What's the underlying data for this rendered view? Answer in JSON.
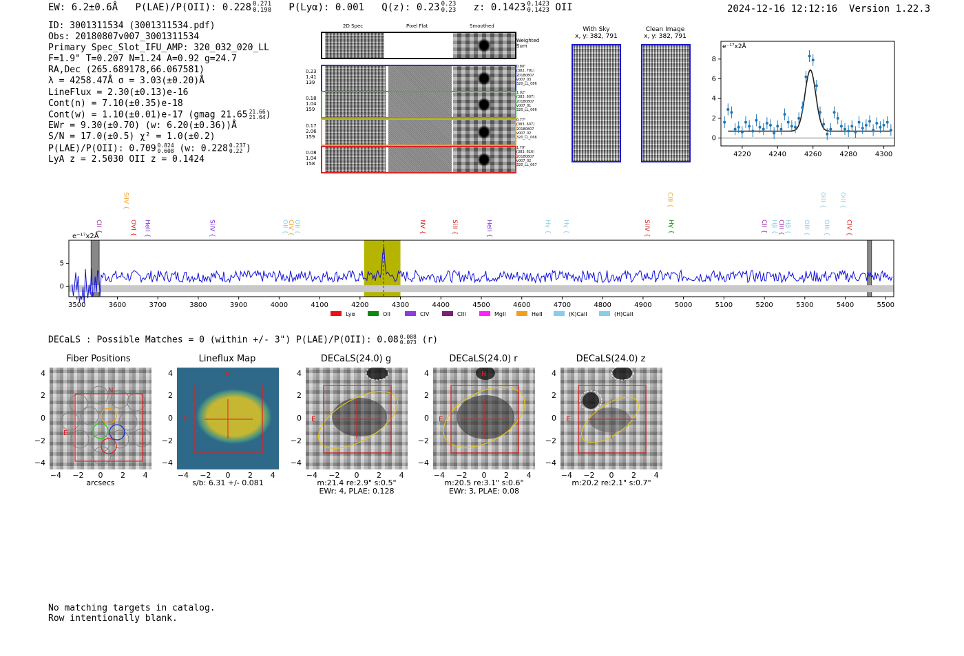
{
  "header": {
    "ew": "EW: 6.2±0.6Å",
    "plae_label": "P(LAE)/P(OII): 0.228",
    "plae_sup": "0.271",
    "plae_sub": "0.198",
    "plya": "P(Lyα): 0.001",
    "q_label": "Q(z): 0.23",
    "q_sup": "0.23",
    "q_sub": "0.23",
    "z_label": "z: 0.1423",
    "z_sup": "0.1423",
    "z_sub": "0.1423",
    "z_line": "OII",
    "timestamp": "2024-12-16 12:12:16",
    "version": "Version 1.22.3"
  },
  "info": {
    "id": "ID: 3001311534 (3001311534.pdf)",
    "obs": "Obs: 20180807v007_3001311534",
    "primary": "Primary Spec_Slot_IFU_AMP: 320_032_020_LL",
    "fparams": "F=1.9\"  T=0.207  N=1.24  A=0.92  g=24.7",
    "radec": "RA,Dec (265.689178,66.067581)",
    "lambda": "λ = 4258.47Å  σ = 3.03(±0.20)Å",
    "lineflux": "LineFlux = 2.30(±0.13)e-16",
    "contn": "Cont(n) = 7.10(±0.35)e-18",
    "contw_pre": "Cont(w) = 1.10(±0.01)e-17 (gmag 21.65",
    "contw_sup": "21.66",
    "contw_sub": "21.64",
    "contw_post": ")",
    "ewr": "EWr = 9.30(±0.70) (w: 6.20(±0.36))Å",
    "sn": "S/N = 17.0(±0.5)  χ² = 1.0(±0.2)",
    "plae_pre": "P(LAE)/P(OII): 0.709",
    "plae_sup": "0.824",
    "plae_sub": "0.608",
    "plae_mid": " (w: 0.228",
    "plae_sup2": "0.237",
    "plae_sub2": "0.22",
    "plae_post": ")",
    "lyaz": "LyA z = 2.5030   OII z = 0.1424"
  },
  "cutouts": {
    "col_labels": [
      "2D Spec",
      "Pixel Flat",
      "Smoothed"
    ],
    "weighted_sum": [
      "Weighted",
      "Sum"
    ],
    "rows": [
      {
        "color": "#2233cc",
        "left": [
          "0.23",
          "1.41",
          "139"
        ],
        "right": [
          "0.80\"",
          "(382, 791)",
          "20180807",
          "v007_03",
          "320_LL_086"
        ]
      },
      {
        "color": "#22cc22",
        "left": [
          "0.18",
          "1.04",
          "159"
        ],
        "right": [
          "1.02\"",
          "(383, 607)",
          "20180807",
          "v007_01",
          "320_LL_066"
        ]
      },
      {
        "color": "#f0a020",
        "left": [
          "0.17",
          "2.06",
          "159"
        ],
        "right": [
          "0.77\"",
          "(383, 607)",
          "20180807",
          "v007_02",
          "320_LL_066"
        ]
      },
      {
        "color": "#dd2222",
        "left": [
          "0.08",
          "1.04",
          "158"
        ],
        "right": [
          "1.79\"",
          "(383, 616)",
          "20180807",
          "v007_02",
          "320_LL_067"
        ]
      }
    ]
  },
  "stamps": {
    "with_sky_title": "With Sky",
    "with_sky_coord": "x, y: 382, 791",
    "clean_title": "Clean Image",
    "clean_coord": "x, y: 382, 791"
  },
  "chart_data": [
    {
      "type": "line",
      "name": "line-fit-zoom",
      "unit_label": "e⁻¹⁷x2Å",
      "xlim": [
        4208,
        4306
      ],
      "ylim": [
        -0.8,
        9.8
      ],
      "xticks": [
        4220,
        4240,
        4260,
        4280,
        4300
      ],
      "yticks": [
        0,
        2,
        4,
        6,
        8
      ],
      "fit": {
        "center": 4258.5,
        "sigma": 3.03,
        "amp": 6.2,
        "baseline": 0.7
      },
      "points_x": [
        4210,
        4212,
        4214,
        4216,
        4218,
        4220,
        4222,
        4224,
        4226,
        4228,
        4230,
        4232,
        4234,
        4236,
        4238,
        4240,
        4242,
        4244,
        4246,
        4248,
        4250,
        4252,
        4254,
        4256,
        4258,
        4260,
        4262,
        4264,
        4266,
        4268,
        4270,
        4272,
        4274,
        4276,
        4278,
        4280,
        4282,
        4284,
        4286,
        4288,
        4290,
        4292,
        4294,
        4296,
        4298,
        4300,
        4302,
        4304
      ],
      "points_y": [
        1.6,
        2.9,
        2.6,
        0.9,
        1.1,
        0.6,
        1.6,
        1.2,
        0.7,
        1.8,
        1.1,
        0.9,
        1.5,
        1.3,
        0.5,
        1.2,
        0.9,
        2.4,
        1.6,
        1.2,
        1.1,
        2.0,
        3.1,
        6.2,
        8.3,
        7.9,
        5.3,
        2.6,
        1.4,
        0.4,
        0.9,
        2.6,
        2.0,
        1.2,
        0.9,
        0.7,
        1.2,
        0.6,
        1.6,
        1.0,
        1.3,
        1.7,
        0.8,
        1.5,
        1.1,
        1.3,
        1.6,
        0.8
      ],
      "y_errors": 0.6
    },
    {
      "type": "line",
      "name": "full-spectrum",
      "unit_label": "e⁻¹⁷x2Å",
      "xlim": [
        3480,
        5520
      ],
      "ylim": [
        -2.2,
        10
      ],
      "xticks": [
        3500,
        3600,
        3700,
        3800,
        3900,
        4000,
        4100,
        4200,
        4300,
        4400,
        4500,
        4600,
        4700,
        4800,
        4900,
        5000,
        5100,
        5200,
        5300,
        5400,
        5500
      ],
      "yticks": [
        0,
        5
      ],
      "highlight_range": [
        4210,
        4300
      ],
      "emission_peak": {
        "x": 4258.5,
        "y": 8.3
      },
      "masked_regions": [
        [
          3535,
          3555
        ],
        [
          5455,
          5465
        ]
      ],
      "line_markers": [
        {
          "label": "CII",
          "x": 3545,
          "color": "#9e2ba6",
          "row": 3
        },
        {
          "label": "SiIV",
          "x": 3612,
          "color": "#f0a020",
          "row": 1
        },
        {
          "label": "OVI",
          "x": 3630,
          "color": "#dd2222",
          "row": 3
        },
        {
          "label": "HeII",
          "x": 3665,
          "color": "#7d2ad6",
          "row": 3
        },
        {
          "label": "SiIV",
          "x": 3825,
          "color": "#7d2ad6",
          "row": 3
        },
        {
          "label": "OII",
          "x": 4005,
          "color": "#87ceeb",
          "row": 3
        },
        {
          "label": "CIV",
          "x": 4020,
          "color": "#f0a020",
          "row": 3
        },
        {
          "label": "OII",
          "x": 4035,
          "color": "#87ceeb",
          "row": 3
        },
        {
          "label": "NV",
          "x": 4345,
          "color": "#dd2222",
          "row": 3
        },
        {
          "label": "SiII",
          "x": 4425,
          "color": "#dd2222",
          "row": 3
        },
        {
          "label": "HeII",
          "x": 4510,
          "color": "#7d2ad6",
          "row": 3
        },
        {
          "label": "Hγ",
          "x": 4655,
          "color": "#87ceeb",
          "row": 3
        },
        {
          "label": "Hγ",
          "x": 4700,
          "color": "#87ceeb",
          "row": 3
        },
        {
          "label": "SiIV",
          "x": 4900,
          "color": "#dd2222",
          "row": 3
        },
        {
          "label": "CIII",
          "x": 4957,
          "color": "#f0a020",
          "row": 1
        },
        {
          "label": "Hγ",
          "x": 4960,
          "color": "#008800",
          "row": 3
        },
        {
          "label": "CII",
          "x": 5190,
          "color": "#9e2ba6",
          "row": 3
        },
        {
          "label": "Hβ",
          "x": 5215,
          "color": "#87ceeb",
          "row": 3
        },
        {
          "label": "CIII",
          "x": 5232,
          "color": "#9e2ba6",
          "row": 3
        },
        {
          "label": "Hβ",
          "x": 5248,
          "color": "#87ceeb",
          "row": 3
        },
        {
          "label": "OIII",
          "x": 5295,
          "color": "#87ceeb",
          "row": 3
        },
        {
          "label": "OIII",
          "x": 5335,
          "color": "#87ceeb",
          "row": 1
        },
        {
          "label": "OIII",
          "x": 5345,
          "color": "#87ceeb",
          "row": 3
        },
        {
          "label": "OIII",
          "x": 5385,
          "color": "#87ceeb",
          "row": 1
        },
        {
          "label": "CIV",
          "x": 5400,
          "color": "#dd2222",
          "row": 3
        }
      ],
      "legend": [
        {
          "label": "Lyα",
          "color": "#ee1111"
        },
        {
          "label": "OII",
          "color": "#118811"
        },
        {
          "label": "CIV",
          "color": "#8a3de0"
        },
        {
          "label": "CIII",
          "color": "#7a1f7a"
        },
        {
          "label": "MgII",
          "color": "#ff22ff"
        },
        {
          "label": "HeII",
          "color": "#f0a020"
        },
        {
          "label": "(K)CaII",
          "color": "#87ceeb"
        },
        {
          "label": "(H)CaII",
          "color": "#87ceeb"
        }
      ]
    }
  ],
  "decals": {
    "summary_pre": "DECaLS : Possible Matches = 0 (within +/- 3\")  P(LAE)/P(OII): 0.08",
    "summary_sup": "0.088",
    "summary_sub": "0.073",
    "summary_post": "(r)",
    "panels": [
      {
        "title": "Fiber Positions",
        "caption": [
          "arcsecs"
        ]
      },
      {
        "title": "Lineflux Map",
        "caption": [
          "s/b: 6.31 +/- 0.081"
        ]
      },
      {
        "title": "DECaLS(24.0) g",
        "caption": [
          "m:21.4  re:2.9\"  s:0.5\"",
          "EWr: 4, PLAE: 0.128"
        ]
      },
      {
        "title": "DECaLS(24.0) r",
        "caption": [
          "m:20.5  re:3.1\"  s:0.6\"",
          "EWr: 3, PLAE: 0.08"
        ]
      },
      {
        "title": "DECaLS(24.0) z",
        "caption": [
          "m:20.2  re:2.1\"  s:0.7\""
        ]
      }
    ],
    "axis_ticks": [
      "4",
      "2",
      "0",
      "−2",
      "−4"
    ],
    "x_ticks": [
      "−4",
      "−2",
      "0",
      "2",
      "4"
    ],
    "north_label": "N",
    "east_label": "E"
  },
  "footer": {
    "line1": "No matching targets in catalog.",
    "line2": "Row intentionally blank."
  }
}
